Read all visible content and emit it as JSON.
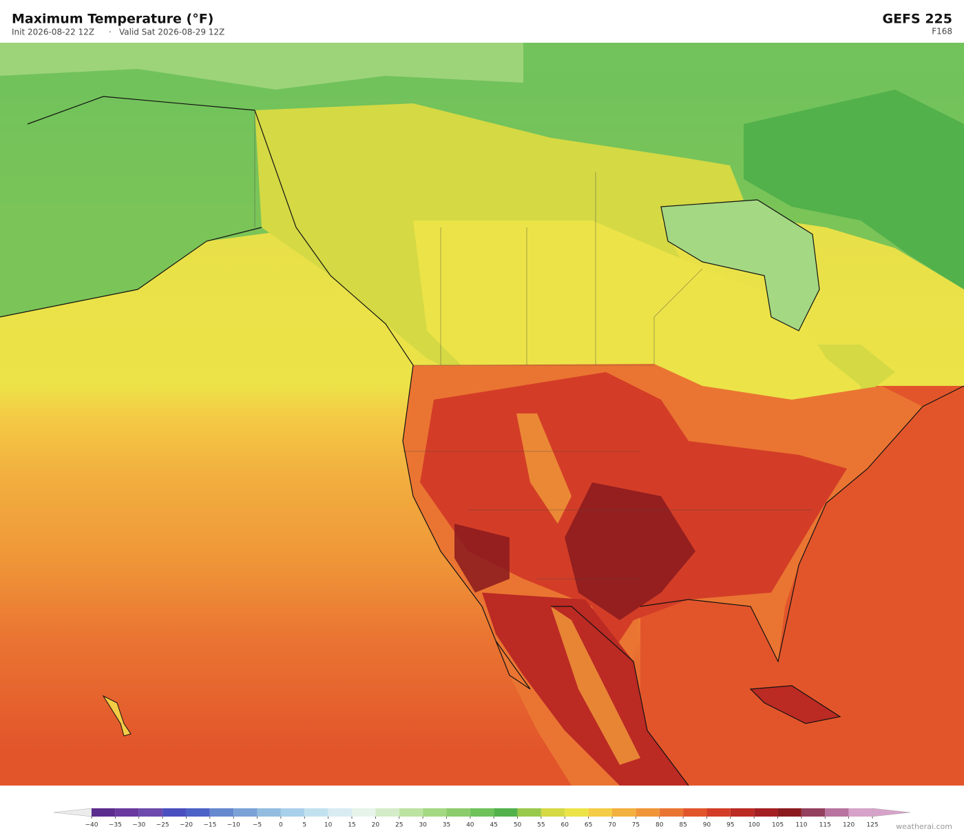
{
  "header": {
    "title": "Maximum Temperature  (°F)",
    "init": "Init 2026-08-22 12Z",
    "separator": "·",
    "valid": "Valid Sat 2026-08-29 12Z",
    "model": "GEFS  225",
    "forecast_hour": "F168"
  },
  "colorbar": {
    "ticks": [
      {
        "value": -40,
        "label": "−40"
      },
      {
        "value": -35,
        "label": "−35"
      },
      {
        "value": -30,
        "label": "−30"
      },
      {
        "value": -25,
        "label": "−25"
      },
      {
        "value": -20,
        "label": "−20"
      },
      {
        "value": -15,
        "label": "−15"
      },
      {
        "value": -10,
        "label": "−10"
      },
      {
        "value": -5,
        "label": "−5"
      },
      0,
      5,
      10,
      15,
      20,
      25,
      30,
      35,
      40,
      45,
      50,
      55,
      60,
      65,
      70,
      75,
      80,
      85,
      90,
      95,
      100,
      105,
      110,
      115,
      120,
      125
    ],
    "colors": [
      "#5b2d8e",
      "#6a3a9e",
      "#6d4aab",
      "#4a4fbf",
      "#4d62c6",
      "#6688cf",
      "#7ba2d6",
      "#93bde0",
      "#a9d0ea",
      "#c2e1ef",
      "#d9ecf2",
      "#e6f4ea",
      "#d4ecc8",
      "#bde3a2",
      "#a4d883",
      "#8ccc6c",
      "#6fc15a",
      "#52b14b",
      "#99c94b",
      "#d4d944",
      "#ece348",
      "#f4cc45",
      "#f2b03f",
      "#ef9538",
      "#ea7532",
      "#e2552b",
      "#d33d27",
      "#bb2a23",
      "#a41f22",
      "#8a1a1e",
      "#94405f",
      "#b873a0",
      "#d7a2c9"
    ],
    "under_color": "#ececec",
    "over_color": "#d7a2c9"
  },
  "watermark": "weatherai.com"
}
